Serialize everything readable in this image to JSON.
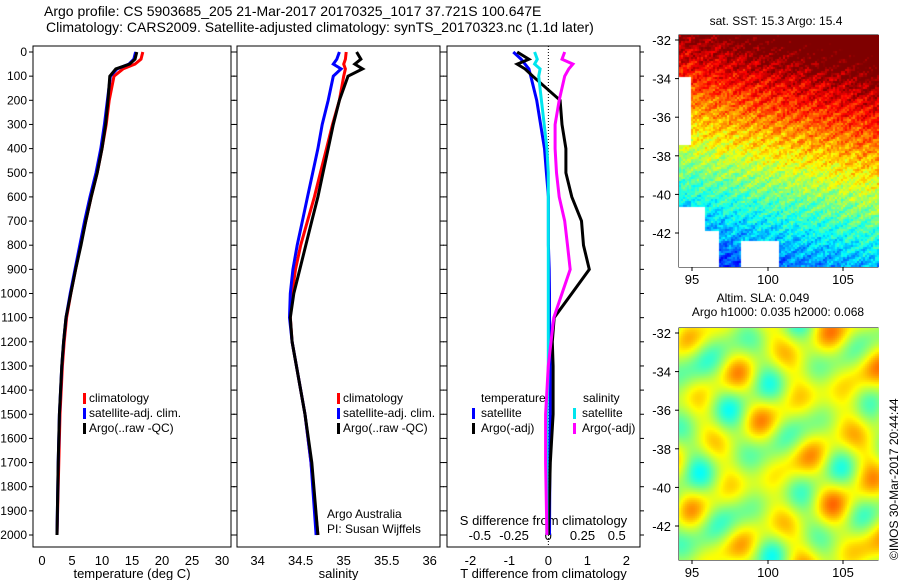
{
  "header": {
    "line1": "Argo profile: CS 5903685_205 21-Mar-2017 20170325_1017 37.721S 100.647E",
    "line2": "Climatology: CARS2009. Satellite-adjusted climatology: synTS_20170323.nc (1.1d later)"
  },
  "stamp": "©IMOS 30-Mar-2017 20:44:44",
  "colors": {
    "climatology": "#ff0000",
    "satellite": "#0000ff",
    "argo": "#000000",
    "sal_sat": "#00e5ee",
    "sal_argo": "#ff00ff"
  },
  "chart_data": [
    {
      "type": "line",
      "name": "temperature",
      "xlabel": "temperature (deg C)",
      "xlim": [
        -1.5,
        31.5
      ],
      "ylim": [
        2050,
        -10
      ],
      "xticks": [
        "0",
        "5",
        "10",
        "15",
        "20",
        "25",
        "30"
      ],
      "xtick_values": [
        0,
        5,
        10,
        15,
        20,
        25,
        30
      ],
      "yticks": [
        "0",
        "100",
        "200",
        "300",
        "400",
        "500",
        "600",
        "700",
        "800",
        "900",
        "1000",
        "1100",
        "1200",
        "1300",
        "1400",
        "1500",
        "1600",
        "1700",
        "1800",
        "1900",
        "2000"
      ],
      "depth": [
        0,
        30,
        50,
        70,
        100,
        200,
        300,
        400,
        500,
        600,
        700,
        800,
        900,
        1000,
        1100,
        1200,
        1300,
        1500,
        1700,
        2000
      ],
      "series": [
        {
          "name": "climatology",
          "legend": "climatology",
          "values": [
            16.8,
            16.5,
            15.5,
            13.5,
            12,
            11.2,
            10.7,
            10,
            9.2,
            8.2,
            7.3,
            6.4,
            5.6,
            4.8,
            4.1,
            3.7,
            3.4,
            3.0,
            2.8,
            2.5
          ]
        },
        {
          "name": "satellite-adj",
          "legend": "satellite-adj. clim.",
          "values": [
            15.6,
            15.3,
            14.5,
            12.5,
            11.4,
            10.9,
            10.4,
            9.8,
            9.0,
            8.0,
            7.1,
            6.3,
            5.5,
            4.7,
            4.0,
            3.6,
            3.3,
            2.9,
            2.7,
            2.5
          ]
        },
        {
          "name": "argo",
          "legend": "Argo(..raw -QC)",
          "values": [
            15.8,
            15.5,
            14.6,
            12.3,
            11.3,
            11.0,
            10.6,
            10.0,
            9.2,
            8.2,
            7.3,
            6.5,
            5.6,
            4.8,
            4.0,
            3.6,
            3.3,
            2.9,
            2.7,
            2.5
          ]
        }
      ]
    },
    {
      "type": "line",
      "name": "salinity",
      "xlabel": "salinity",
      "xlim": [
        33.76,
        36.12
      ],
      "ylim": [
        2050,
        -10
      ],
      "xticks": [
        "34",
        "34.5",
        "35",
        "35.5",
        "36"
      ],
      "xtick_values": [
        34,
        34.5,
        35,
        35.5,
        36
      ],
      "depth": [
        0,
        30,
        50,
        70,
        100,
        200,
        300,
        400,
        500,
        600,
        700,
        800,
        900,
        1000,
        1100,
        1200,
        1300,
        1500,
        1700,
        2000
      ],
      "series": [
        {
          "name": "climatology",
          "legend": "climatology",
          "values": [
            35.03,
            35.02,
            35.0,
            35.02,
            35.0,
            34.95,
            34.87,
            34.8,
            34.73,
            34.66,
            34.58,
            34.5,
            34.44,
            34.4,
            34.38,
            34.4,
            34.45,
            34.55,
            34.62,
            34.7
          ]
        },
        {
          "name": "satellite-adj",
          "legend": "satellite-adj. clim.",
          "values": [
            34.95,
            34.92,
            34.88,
            34.97,
            34.88,
            34.82,
            34.75,
            34.7,
            34.64,
            34.58,
            34.52,
            34.46,
            34.41,
            34.38,
            34.37,
            34.4,
            34.45,
            34.55,
            34.62,
            34.68
          ]
        },
        {
          "name": "argo",
          "legend": "Argo(..raw -QC)",
          "values": [
            35.15,
            35.2,
            35.13,
            35.22,
            35.05,
            34.95,
            34.88,
            34.82,
            34.76,
            34.7,
            34.63,
            34.56,
            34.49,
            34.42,
            34.38,
            34.4,
            34.45,
            34.55,
            34.63,
            34.7
          ]
        }
      ],
      "annotation": [
        "Argo Australia",
        "PI: Susan Wijffels"
      ]
    },
    {
      "type": "line",
      "name": "difference",
      "xlabel": "T difference from climatology",
      "x2label": "S difference from climatology",
      "xlim": [
        -2.6,
        2.35
      ],
      "x2lim": [
        -0.74,
        0.67
      ],
      "ylim": [
        2050,
        -10
      ],
      "xticks": [
        "-2",
        "-1",
        "0",
        "1",
        "2"
      ],
      "xtick_values": [
        -2,
        -1,
        0,
        1,
        2
      ],
      "x2ticks": [
        "-0.5",
        "-0.25",
        "0",
        "0.25",
        "0.5"
      ],
      "x2tick_values": [
        -0.5,
        -0.25,
        0,
        0.25,
        0.5
      ],
      "depth": [
        0,
        30,
        50,
        70,
        100,
        200,
        300,
        400,
        500,
        600,
        700,
        800,
        900,
        1000,
        1100,
        1200,
        1300,
        1500,
        1700,
        2000
      ],
      "legend_titles": [
        "temperature",
        "salinity"
      ],
      "series": [
        {
          "name": "T satellite",
          "axis": "T",
          "legend": "satellite",
          "values": [
            -0.9,
            -0.7,
            -0.6,
            -0.5,
            -0.45,
            -0.3,
            -0.2,
            -0.1,
            -0.05,
            0,
            0,
            0,
            0.02,
            0.03,
            0.03,
            0.05,
            0.05,
            0.05,
            0.04,
            0.03
          ]
        },
        {
          "name": "T Argo(-adj)",
          "axis": "T",
          "legend": "Argo(-adj)",
          "values": [
            -0.8,
            -0.5,
            -0.8,
            -0.6,
            -0.4,
            0.3,
            0.35,
            0.45,
            0.45,
            0.6,
            0.85,
            0.9,
            1.05,
            0.6,
            0.15,
            0.1,
            0.12,
            0.12,
            0.05,
            0.0
          ]
        },
        {
          "name": "S satellite",
          "axis": "S",
          "legend": "satellite",
          "values": [
            -0.1,
            -0.08,
            -0.1,
            -0.06,
            -0.07,
            -0.05,
            -0.03,
            -0.01,
            0,
            0,
            0,
            0,
            0,
            0,
            0,
            0,
            0,
            -0.01,
            -0.01,
            -0.01
          ]
        },
        {
          "name": "S Argo(-adj)",
          "axis": "S",
          "legend": "Argo(-adj)",
          "values": [
            0.12,
            0.1,
            0.18,
            0.15,
            0.12,
            0.08,
            0.05,
            0.05,
            0.06,
            0.08,
            0.12,
            0.14,
            0.16,
            0.1,
            0.04,
            0.02,
            0.0,
            -0.02,
            -0.02,
            -0.01
          ]
        }
      ]
    },
    {
      "type": "heatmap",
      "name": "sst-map",
      "title": "sat. SST: 15.3 Argo: 15.4",
      "xticks": [
        "95",
        "100",
        "105"
      ],
      "yticks": [
        "-32",
        "-34",
        "-36",
        "-38",
        "-40",
        "-42"
      ]
    },
    {
      "type": "heatmap",
      "name": "sla-map",
      "title": "Altim. SLA: 0.049",
      "subtitle": "Argo h1000: 0.035 h2000: 0.068",
      "xticks": [
        "95",
        "100",
        "105"
      ],
      "yticks": [
        "-32",
        "-34",
        "-36",
        "-38",
        "-40",
        "-42"
      ]
    }
  ]
}
